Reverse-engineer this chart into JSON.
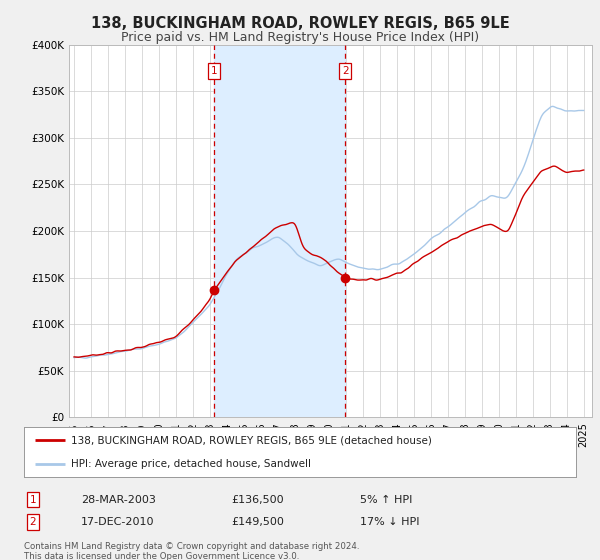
{
  "title": "138, BUCKINGHAM ROAD, ROWLEY REGIS, B65 9LE",
  "subtitle": "Price paid vs. HM Land Registry's House Price Index (HPI)",
  "title_fontsize": 10.5,
  "subtitle_fontsize": 9,
  "background_color": "#f0f0f0",
  "plot_bg_color": "#ffffff",
  "ylim": [
    0,
    400000
  ],
  "yticks": [
    0,
    50000,
    100000,
    150000,
    200000,
    250000,
    300000,
    350000,
    400000
  ],
  "ytick_labels": [
    "£0",
    "£50K",
    "£100K",
    "£150K",
    "£200K",
    "£250K",
    "£300K",
    "£350K",
    "£400K"
  ],
  "xlim_start": 1994.7,
  "xlim_end": 2025.5,
  "sale1_date": 2003.23,
  "sale1_price": 136500,
  "sale1_label": "1",
  "sale1_hpi_pct": "5% ↑ HPI",
  "sale1_date_str": "28-MAR-2003",
  "sale2_date": 2010.96,
  "sale2_price": 149500,
  "sale2_label": "2",
  "sale2_hpi_pct": "17% ↓ HPI",
  "sale2_date_str": "17-DEC-2010",
  "legend_entry1": "138, BUCKINGHAM ROAD, ROWLEY REGIS, B65 9LE (detached house)",
  "legend_entry2": "HPI: Average price, detached house, Sandwell",
  "footer1": "Contains HM Land Registry data © Crown copyright and database right 2024.",
  "footer2": "This data is licensed under the Open Government Licence v3.0.",
  "hpi_color": "#a8c8e8",
  "price_color": "#cc0000",
  "shade_color": "#ddeeff",
  "grid_color": "#cccccc",
  "xtick_years": [
    1995,
    1996,
    1997,
    1998,
    1999,
    2000,
    2001,
    2002,
    2003,
    2004,
    2005,
    2006,
    2007,
    2008,
    2009,
    2010,
    2011,
    2012,
    2013,
    2014,
    2015,
    2016,
    2017,
    2018,
    2019,
    2020,
    2021,
    2022,
    2023,
    2024,
    2025
  ]
}
